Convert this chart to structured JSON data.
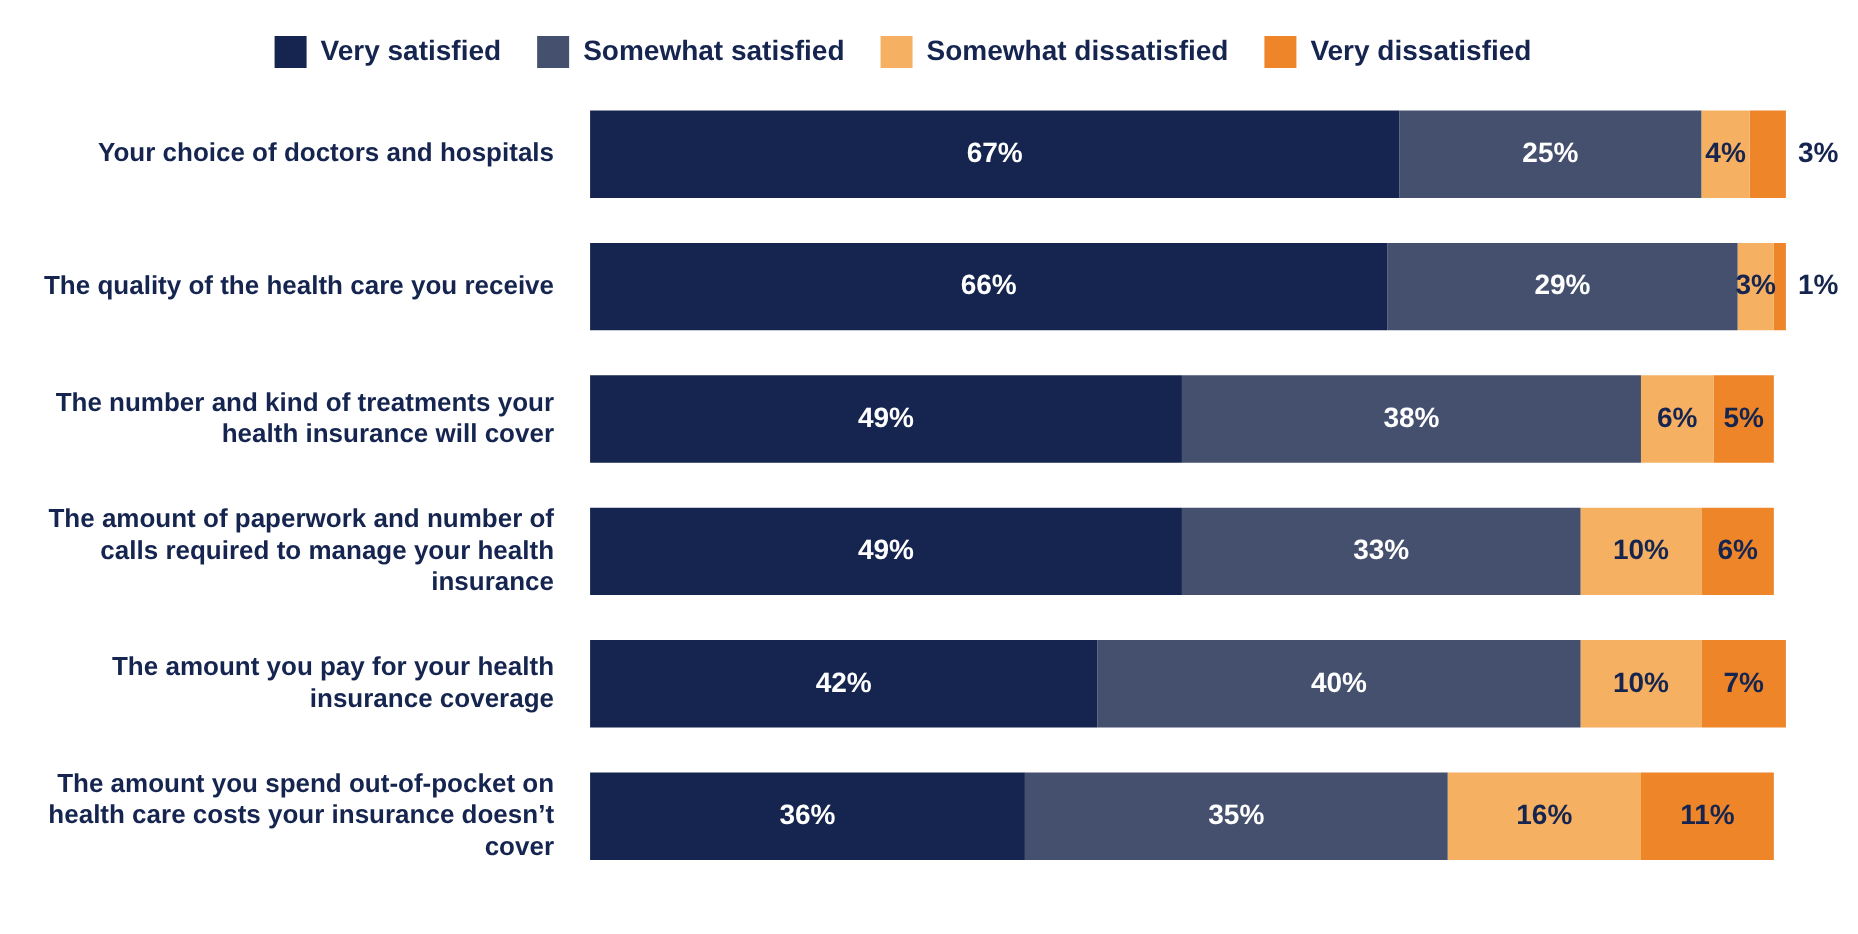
{
  "chart_data": {
    "type": "bar",
    "orientation": "horizontal",
    "stacked": true,
    "legend": "top",
    "grid": false,
    "categories": [
      "Your choice of doctors and hospitals",
      "The quality of the health care you receive",
      "The number and kind of treatments your health insurance will cover",
      "The amount of paperwork and number of calls required to manage your health insurance",
      "The amount you pay for your health insurance coverage",
      "The amount you spend out-of-pocket on health care costs your insurance doesn’t cover"
    ],
    "series": [
      {
        "name": "Very satisfied",
        "color": "#15254f",
        "values": [
          67,
          66,
          49,
          49,
          42,
          36
        ],
        "value_labels": [
          "67%",
          "66%",
          "49%",
          "49%",
          "42%",
          "36%"
        ]
      },
      {
        "name": "Somewhat satisfied",
        "color": "#45506f",
        "values": [
          25,
          29,
          38,
          33,
          40,
          35
        ],
        "value_labels": [
          "25%",
          "29%",
          "38%",
          "33%",
          "40%",
          "35%"
        ]
      },
      {
        "name": "Somewhat dissatisfied",
        "color": "#f5b062",
        "values": [
          4,
          3,
          6,
          10,
          10,
          16
        ],
        "value_labels": [
          "4%",
          "3%",
          "6%",
          "10%",
          "10%",
          "16%"
        ]
      },
      {
        "name": "Very dissatisfied",
        "color": "#ee8629",
        "values": [
          3,
          1,
          5,
          6,
          7,
          11
        ],
        "value_labels": [
          "3%",
          "1%",
          "5%",
          "6%",
          "7%",
          "11%"
        ]
      }
    ]
  }
}
